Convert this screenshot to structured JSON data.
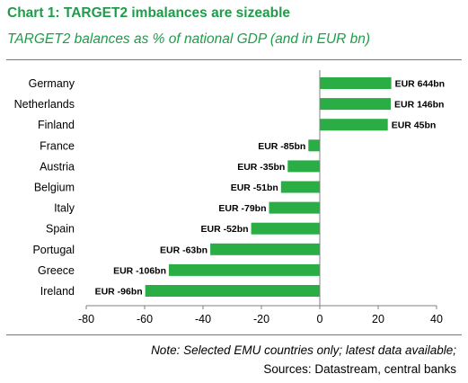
{
  "header": {
    "title": "Chart 1: TARGET2 imbalances are sizeable",
    "subtitle": "TARGET2 balances as % of national GDP (and in EUR bn)"
  },
  "footer": {
    "note": "Note: Selected EMU countries only; latest data available;",
    "sources": "Sources: Datastream, central banks"
  },
  "colors": {
    "accent": "#1f9c4a",
    "bar": "#2aad45",
    "axis": "#808080"
  },
  "chart_data": {
    "type": "bar",
    "orientation": "horizontal",
    "categories": [
      "Germany",
      "Netherlands",
      "Finland",
      "France",
      "Austria",
      "Belgium",
      "Italy",
      "Spain",
      "Portugal",
      "Greece",
      "Ireland"
    ],
    "values": [
      24.5,
      24.3,
      23.3,
      -3.9,
      -11.0,
      -13.3,
      -17.4,
      -23.5,
      -37.5,
      -51.7,
      -59.8
    ],
    "data_labels": [
      "EUR 644bn",
      "EUR 146bn",
      "EUR 45bn",
      "EUR -85bn",
      "EUR -35bn",
      "EUR -51bn",
      "EUR -79bn",
      "EUR -52bn",
      "EUR -63bn",
      "EUR -106bn",
      "EUR -96bn"
    ],
    "xlim": [
      -80,
      40
    ],
    "xticks": [
      -80,
      -60,
      -40,
      -20,
      0,
      20,
      40
    ],
    "xlabel": "",
    "ylabel": "",
    "grid": false,
    "legend": "none"
  }
}
